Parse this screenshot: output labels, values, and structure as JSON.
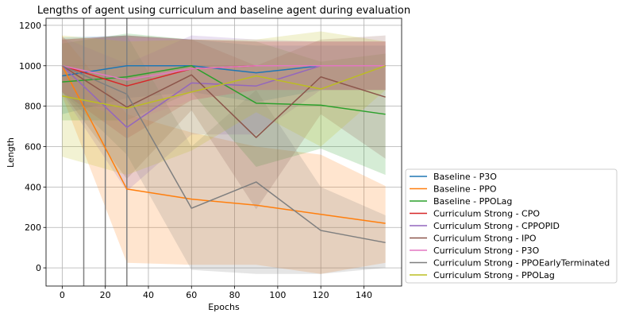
{
  "chart_data": {
    "type": "line",
    "title": "Lengths of agent using curriculum and baseline agent during evaluation",
    "xlabel": "Epochs",
    "ylabel": "Length",
    "xlim": [
      -7.5,
      157.5
    ],
    "ylim": [
      -90,
      1235
    ],
    "xticks": [
      0,
      20,
      40,
      60,
      80,
      100,
      120,
      140
    ],
    "yticks": [
      0,
      200,
      400,
      600,
      800,
      1000,
      1200
    ],
    "grid": true,
    "legend_position": "lower-right-outside",
    "vertical_lines": [
      10,
      20,
      30
    ],
    "x": [
      0,
      30,
      60,
      90,
      120,
      150
    ],
    "series": [
      {
        "name": "Baseline - P3O",
        "color": "#1f77b4",
        "values": [
          950,
          1000,
          1000,
          965,
          1000,
          1000
        ],
        "lower": [
          760,
          840,
          870,
          820,
          880,
          880
        ],
        "upper": [
          1140,
          1150,
          1130,
          1100,
          1100,
          1100
        ]
      },
      {
        "name": "Baseline - PPO",
        "color": "#ff7f0e",
        "values": [
          1000,
          390,
          340,
          310,
          265,
          220
        ],
        "lower": [
          850,
          25,
          15,
          15,
          -30,
          25
        ],
        "upper": [
          1150,
          760,
          670,
          600,
          560,
          405
        ]
      },
      {
        "name": "Baseline - PPOLag",
        "color": "#2ca02c",
        "values": [
          920,
          945,
          1000,
          815,
          805,
          760
        ],
        "lower": [
          730,
          730,
          870,
          500,
          590,
          460
        ],
        "upper": [
          1110,
          1160,
          1130,
          1120,
          1020,
          1060
        ]
      },
      {
        "name": "Curriculum Strong - CPO",
        "color": "#d62728",
        "values": [
          1000,
          900,
          985,
          1000,
          1000,
          1000
        ],
        "lower": [
          870,
          640,
          830,
          880,
          880,
          880
        ],
        "upper": [
          1130,
          1150,
          1130,
          1120,
          1120,
          1120
        ]
      },
      {
        "name": "Curriculum Strong - CPPOPID",
        "color": "#9467bd",
        "values": [
          1000,
          695,
          915,
          900,
          1000,
          1000
        ],
        "lower": [
          860,
          380,
          660,
          660,
          880,
          880
        ],
        "upper": [
          1140,
          1010,
          1150,
          1130,
          1120,
          1120
        ]
      },
      {
        "name": "Curriculum Strong - IPO",
        "color": "#8c564b",
        "values": [
          1000,
          795,
          955,
          645,
          945,
          845
        ],
        "lower": [
          870,
          440,
          780,
          290,
          760,
          540
        ],
        "upper": [
          1130,
          1150,
          1130,
          1000,
          1130,
          1150
        ]
      },
      {
        "name": "Curriculum Strong - P3O",
        "color": "#e377c2",
        "values": [
          1000,
          930,
          985,
          1000,
          1000,
          1000
        ],
        "lower": [
          870,
          720,
          830,
          880,
          880,
          880
        ],
        "upper": [
          1130,
          1140,
          1130,
          1120,
          1120,
          1120
        ]
      },
      {
        "name": "Curriculum Strong - PPOEarlyTerminated",
        "color": "#7f7f7f",
        "values": [
          1000,
          860,
          295,
          425,
          185,
          125
        ],
        "lower": [
          870,
          560,
          -10,
          -30,
          -30,
          0
        ],
        "upper": [
          1130,
          1150,
          600,
          880,
          400,
          260
        ]
      },
      {
        "name": "Curriculum Strong - PPOLag",
        "color": "#bcbd22",
        "values": [
          850,
          790,
          870,
          950,
          885,
          1000
        ],
        "lower": [
          550,
          460,
          580,
          770,
          600,
          880
        ],
        "upper": [
          1150,
          1120,
          1130,
          1130,
          1170,
          1120
        ]
      }
    ]
  }
}
